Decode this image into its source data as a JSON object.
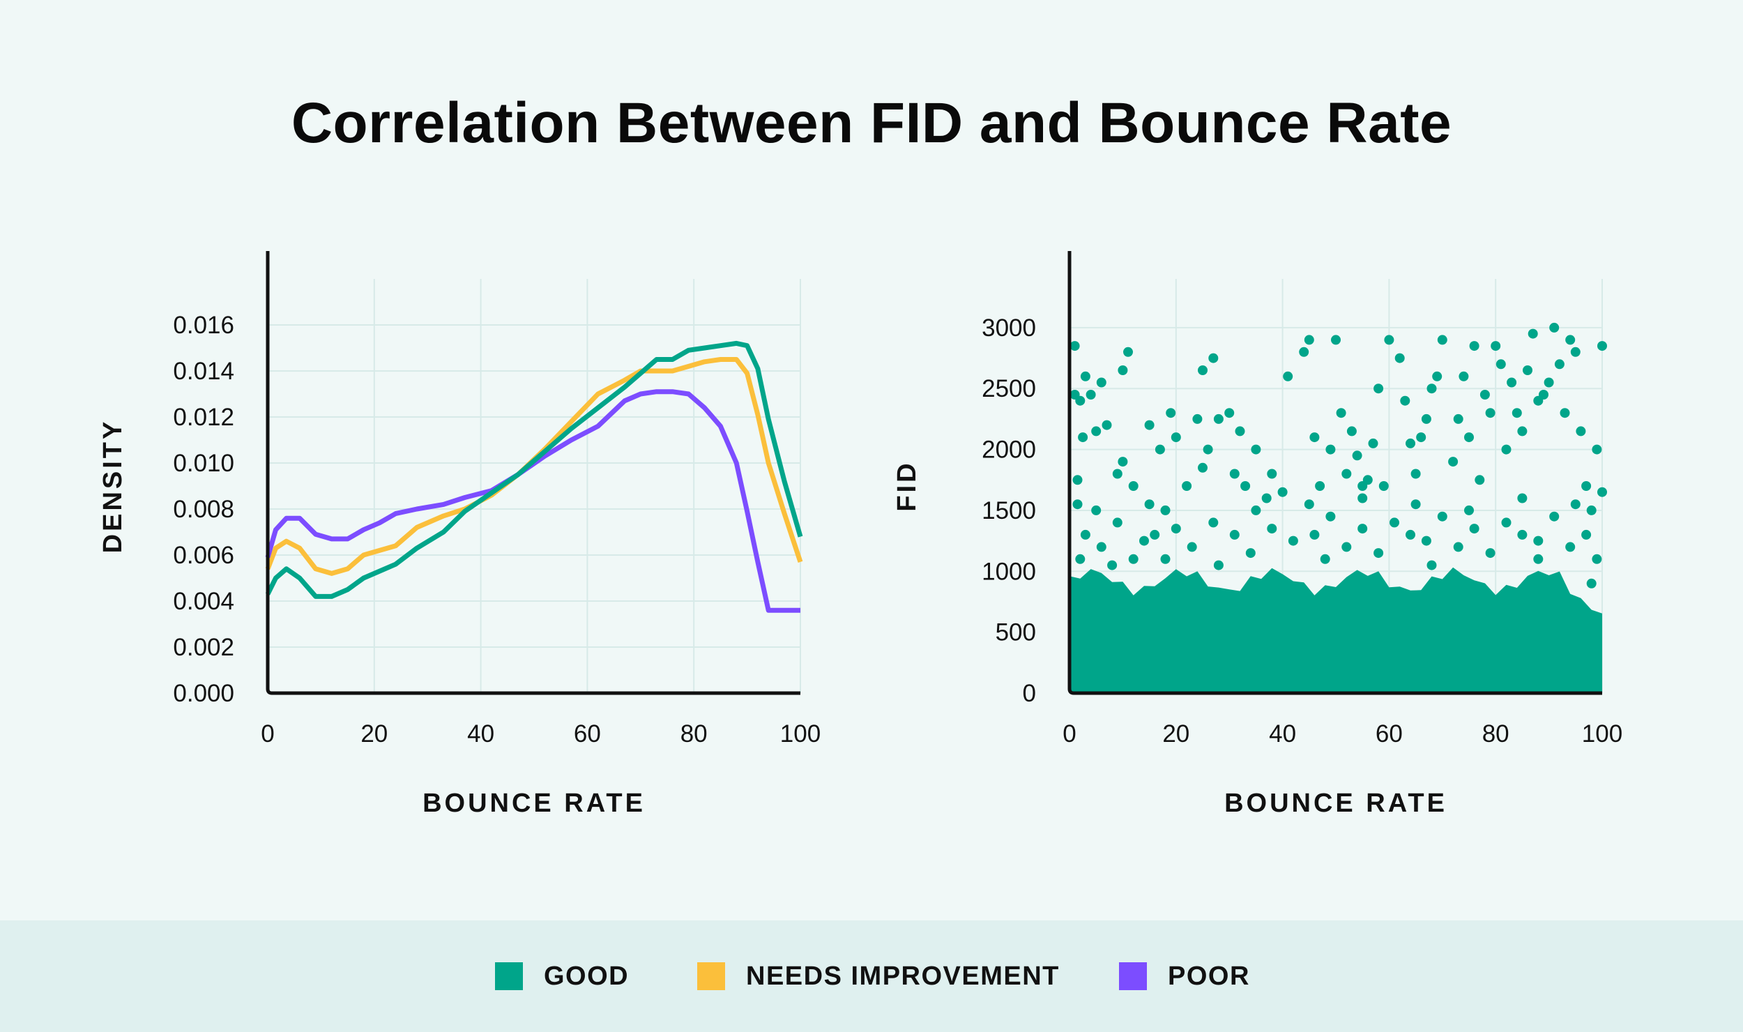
{
  "title": "Correlation Between FID and Bounce Rate",
  "colors": {
    "good": "#00a58a",
    "needs_improvement": "#fbbf3b",
    "poor": "#7c4dff",
    "axis": "#111111",
    "grid": "#d7eae8"
  },
  "legend": {
    "items": [
      {
        "label": "GOOD",
        "color": "#00a58a"
      },
      {
        "label": "NEEDS IMPROVEMENT",
        "color": "#fbbf3b"
      },
      {
        "label": "POOR",
        "color": "#7c4dff"
      }
    ]
  },
  "chart_data": [
    {
      "type": "line",
      "xlabel": "BOUNCE RATE",
      "ylabel": "DENSITY",
      "xlim": [
        0,
        100
      ],
      "ylim": [
        0,
        0.018
      ],
      "xticks": [
        0,
        20,
        40,
        60,
        80,
        100
      ],
      "xtick_labels": [
        "0",
        "20",
        "40",
        "60",
        "80",
        "100"
      ],
      "yticks": [
        0,
        0.002,
        0.004,
        0.006,
        0.008,
        0.01,
        0.012,
        0.014,
        0.016
      ],
      "ytick_labels": [
        "0.000",
        "0.002",
        "0.004",
        "0.006",
        "0.008",
        "0.010",
        "0.012",
        "0.014",
        "0.016"
      ],
      "grid": true,
      "series": [
        {
          "name": "GOOD",
          "color": "#00a58a",
          "x": [
            0,
            1.5,
            3.5,
            6,
            9,
            12,
            15,
            18,
            21,
            24,
            28,
            33,
            37,
            42,
            47,
            52,
            57,
            62,
            67,
            70,
            73,
            76,
            79,
            82,
            85,
            88,
            90,
            92,
            94,
            97,
            100
          ],
          "y": [
            0.0043,
            0.005,
            0.0054,
            0.005,
            0.0042,
            0.0042,
            0.0045,
            0.005,
            0.0053,
            0.0056,
            0.0063,
            0.007,
            0.0079,
            0.0087,
            0.0095,
            0.0105,
            0.0115,
            0.0124,
            0.0133,
            0.0139,
            0.0145,
            0.0145,
            0.0149,
            0.015,
            0.0151,
            0.0152,
            0.0151,
            0.0141,
            0.0119,
            0.0092,
            0.0068
          ]
        },
        {
          "name": "NEEDS IMPROVEMENT",
          "color": "#fbbf3b",
          "x": [
            0,
            1.5,
            3.5,
            6,
            9,
            12,
            15,
            18,
            21,
            24,
            28,
            33,
            37,
            42,
            47,
            52,
            57,
            62,
            67,
            70,
            73,
            76,
            79,
            82,
            85,
            88,
            90,
            92,
            94,
            97,
            100
          ],
          "y": [
            0.0054,
            0.0063,
            0.0066,
            0.0063,
            0.0054,
            0.0052,
            0.0054,
            0.006,
            0.0062,
            0.0064,
            0.0072,
            0.0077,
            0.008,
            0.0086,
            0.0095,
            0.0106,
            0.0118,
            0.013,
            0.0136,
            0.014,
            0.014,
            0.014,
            0.0142,
            0.0144,
            0.0145,
            0.0145,
            0.0139,
            0.0121,
            0.01,
            0.0078,
            0.0057
          ]
        },
        {
          "name": "POOR",
          "color": "#7c4dff",
          "x": [
            0,
            1.5,
            3.5,
            6,
            9,
            12,
            15,
            18,
            21,
            24,
            28,
            33,
            37,
            42,
            47,
            52,
            57,
            62,
            67,
            70,
            73,
            76,
            79,
            82,
            85,
            88,
            90,
            92,
            94,
            97,
            100
          ],
          "y": [
            0.0059,
            0.0071,
            0.0076,
            0.0076,
            0.0069,
            0.0067,
            0.0067,
            0.0071,
            0.0074,
            0.0078,
            0.008,
            0.0082,
            0.0085,
            0.0088,
            0.0095,
            0.0103,
            0.011,
            0.0116,
            0.0127,
            0.013,
            0.0131,
            0.0131,
            0.013,
            0.0124,
            0.0116,
            0.01,
            0.0079,
            0.0057,
            0.0036,
            0.0036,
            0.0036
          ]
        }
      ]
    },
    {
      "type": "scatter",
      "xlabel": "BOUNCE RATE",
      "ylabel": "FID",
      "xlim": [
        0,
        100
      ],
      "ylim": [
        0,
        3400
      ],
      "xticks": [
        0,
        20,
        40,
        60,
        80,
        100
      ],
      "xtick_labels": [
        "0",
        "20",
        "40",
        "60",
        "80",
        "100"
      ],
      "yticks": [
        0,
        500,
        1000,
        1500,
        2000,
        2500,
        3000
      ],
      "ytick_labels": [
        "0",
        "500",
        "1000",
        "1500",
        "2000",
        "2500",
        "3000"
      ],
      "grid": true,
      "series": [
        {
          "name": "GOOD",
          "color": "#00a58a",
          "points": [
            [
              1,
              2850
            ],
            [
              1,
              2450
            ],
            [
              2,
              2400
            ],
            [
              1.5,
              1750
            ],
            [
              1.5,
              1550
            ],
            [
              2.5,
              2100
            ],
            [
              3,
              2600
            ],
            [
              4,
              2450
            ],
            [
              5,
              2150
            ],
            [
              6,
              2550
            ],
            [
              7,
              2200
            ],
            [
              9,
              1800
            ],
            [
              10,
              2650
            ],
            [
              11,
              2800
            ],
            [
              10,
              1900
            ],
            [
              12,
              1700
            ],
            [
              15,
              2200
            ],
            [
              17,
              2000
            ],
            [
              19,
              2300
            ],
            [
              18,
              1500
            ],
            [
              20,
              2100
            ],
            [
              22,
              1700
            ],
            [
              24,
              2250
            ],
            [
              25,
              1850
            ],
            [
              26,
              2000
            ],
            [
              25,
              2650
            ],
            [
              27,
              2750
            ],
            [
              28,
              2250
            ],
            [
              30,
              2300
            ],
            [
              31,
              1800
            ],
            [
              32,
              2150
            ],
            [
              33,
              1700
            ],
            [
              35,
              2000
            ],
            [
              37,
              1600
            ],
            [
              38,
              1800
            ],
            [
              40,
              1650
            ],
            [
              41,
              2600
            ],
            [
              44,
              2800
            ],
            [
              45,
              2900
            ],
            [
              46,
              2100
            ],
            [
              47,
              1700
            ],
            [
              49,
              2000
            ],
            [
              50,
              2900
            ],
            [
              51,
              2300
            ],
            [
              52,
              1800
            ],
            [
              53,
              2150
            ],
            [
              54,
              1950
            ],
            [
              55,
              1700
            ],
            [
              56,
              1750
            ],
            [
              57,
              2050
            ],
            [
              58,
              2500
            ],
            [
              59,
              1700
            ],
            [
              60,
              2900
            ],
            [
              62,
              2750
            ],
            [
              63,
              2400
            ],
            [
              64,
              2050
            ],
            [
              65,
              1800
            ],
            [
              66,
              2100
            ],
            [
              67,
              2250
            ],
            [
              68,
              2500
            ],
            [
              69,
              2600
            ],
            [
              70,
              2900
            ],
            [
              72,
              1900
            ],
            [
              73,
              2250
            ],
            [
              74,
              2600
            ],
            [
              75,
              2100
            ],
            [
              76,
              2850
            ],
            [
              77,
              1750
            ],
            [
              78,
              2450
            ],
            [
              79,
              2300
            ],
            [
              80,
              2850
            ],
            [
              81,
              2700
            ],
            [
              82,
              2000
            ],
            [
              83,
              2550
            ],
            [
              84,
              2300
            ],
            [
              85,
              2150
            ],
            [
              86,
              2650
            ],
            [
              87,
              2950
            ],
            [
              88,
              2400
            ],
            [
              89,
              2450
            ],
            [
              90,
              2550
            ],
            [
              91,
              3000
            ],
            [
              92,
              2700
            ],
            [
              93,
              2300
            ],
            [
              94,
              2900
            ],
            [
              95,
              2800
            ],
            [
              96,
              2150
            ],
            [
              97,
              1700
            ],
            [
              98,
              1500
            ],
            [
              99,
              2000
            ],
            [
              100,
              2850
            ],
            [
              100,
              1650
            ],
            [
              3,
              1300
            ],
            [
              6,
              1200
            ],
            [
              9,
              1400
            ],
            [
              12,
              1100
            ],
            [
              14,
              1250
            ],
            [
              16,
              1300
            ],
            [
              20,
              1350
            ],
            [
              23,
              1200
            ],
            [
              27,
              1400
            ],
            [
              31,
              1300
            ],
            [
              34,
              1150
            ],
            [
              38,
              1350
            ],
            [
              42,
              1250
            ],
            [
              46,
              1300
            ],
            [
              49,
              1450
            ],
            [
              52,
              1200
            ],
            [
              55,
              1350
            ],
            [
              58,
              1150
            ],
            [
              61,
              1400
            ],
            [
              64,
              1300
            ],
            [
              67,
              1250
            ],
            [
              70,
              1450
            ],
            [
              73,
              1200
            ],
            [
              76,
              1350
            ],
            [
              79,
              1150
            ],
            [
              82,
              1400
            ],
            [
              85,
              1300
            ],
            [
              88,
              1250
            ],
            [
              91,
              1450
            ],
            [
              94,
              1200
            ],
            [
              97,
              1300
            ],
            [
              99,
              1100
            ],
            [
              5,
              1500
            ],
            [
              15,
              1550
            ],
            [
              35,
              1500
            ],
            [
              45,
              1550
            ],
            [
              55,
              1600
            ],
            [
              65,
              1550
            ],
            [
              75,
              1500
            ],
            [
              85,
              1600
            ],
            [
              95,
              1550
            ],
            [
              2,
              1100
            ],
            [
              8,
              1050
            ],
            [
              18,
              1100
            ],
            [
              28,
              1050
            ],
            [
              48,
              1100
            ],
            [
              68,
              1050
            ],
            [
              88,
              1100
            ],
            [
              98,
              900
            ]
          ]
        }
      ],
      "dense_band": {
        "name": "GOOD",
        "fid_range": [
          0,
          1000
        ],
        "x_range": [
          0,
          100
        ]
      }
    }
  ]
}
